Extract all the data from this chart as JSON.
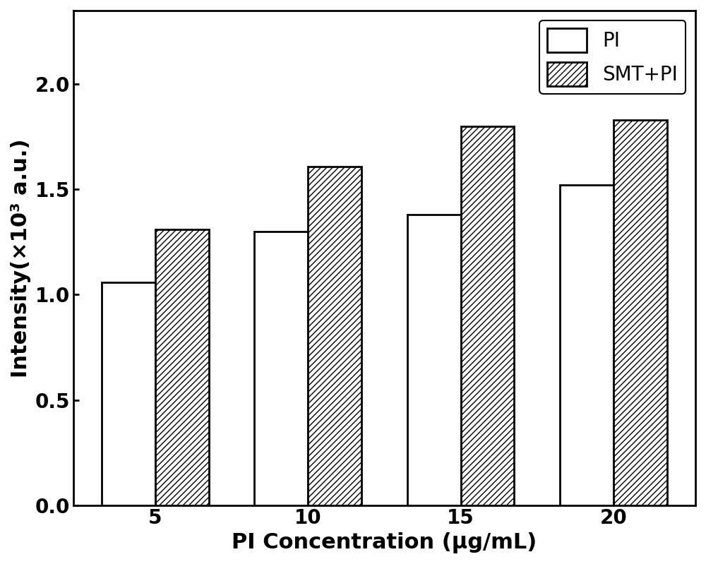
{
  "categories": [
    5,
    10,
    15,
    20
  ],
  "pi_values": [
    1.06,
    1.3,
    1.38,
    1.52
  ],
  "smt_pi_values": [
    1.31,
    1.61,
    1.8,
    1.83
  ],
  "ylabel": "Intensity(×10³ a.u.)",
  "xlabel": "PI Concentration (μg/mL)",
  "ylim": [
    0,
    2.35
  ],
  "yticks": [
    0.0,
    0.5,
    1.0,
    1.5,
    2.0
  ],
  "ytick_labels": [
    "0.0",
    "0.5",
    "1.0",
    "1.5",
    "2.0"
  ],
  "legend_labels": [
    "PI",
    "SMT+PI"
  ],
  "bar_width": 0.35,
  "bar_color_pi": "#ffffff",
  "bar_color_smt": "#ffffff",
  "bar_edgecolor": "#000000",
  "hatch_smt": "////",
  "background_color": "#ffffff",
  "label_fontsize": 22,
  "tick_fontsize": 20,
  "legend_fontsize": 20
}
